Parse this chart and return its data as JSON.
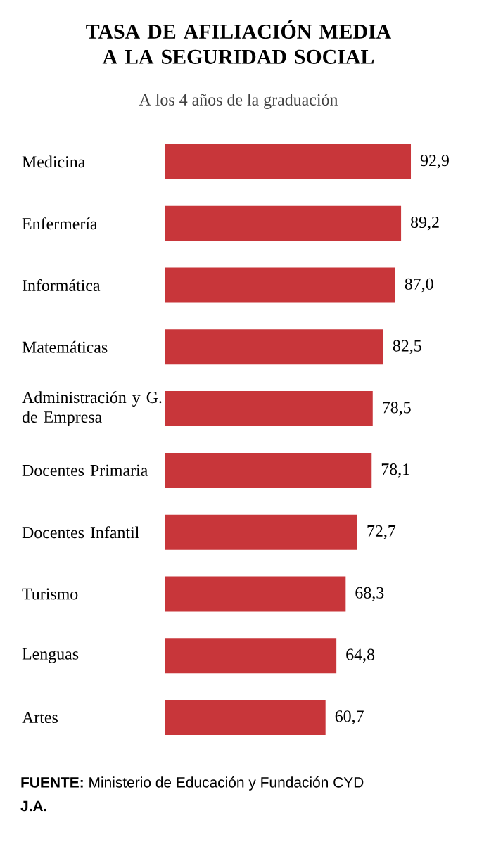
{
  "chart_data": {
    "type": "bar",
    "orientation": "horizontal",
    "title": "TASA DE AFILIACIÓN MEDIA A LA SEGURIDAD SOCIAL",
    "subtitle": "A los 4 años de la graduación",
    "categories": [
      "Medicina",
      "Enfermería",
      "Informática",
      "Matemáticas",
      "Administración y G. de Empresa",
      "Docentes Primaria",
      "Docentes Infantil",
      "Turismo",
      "Lenguas",
      "Artes"
    ],
    "values": [
      92.9,
      89.2,
      87.0,
      82.5,
      78.5,
      78.1,
      72.7,
      68.3,
      64.8,
      60.7
    ],
    "value_labels": [
      "92,9",
      "89,2",
      "87,0",
      "82,5",
      "78,5",
      "78,1",
      "72,7",
      "68,3",
      "64,8",
      "60,7"
    ],
    "color": "#c8363a",
    "xlim": [
      0,
      93
    ],
    "annotations": [
      "**FUENTE:** Ministerio de Educación y Fundación CYD",
      "J.A."
    ]
  }
}
